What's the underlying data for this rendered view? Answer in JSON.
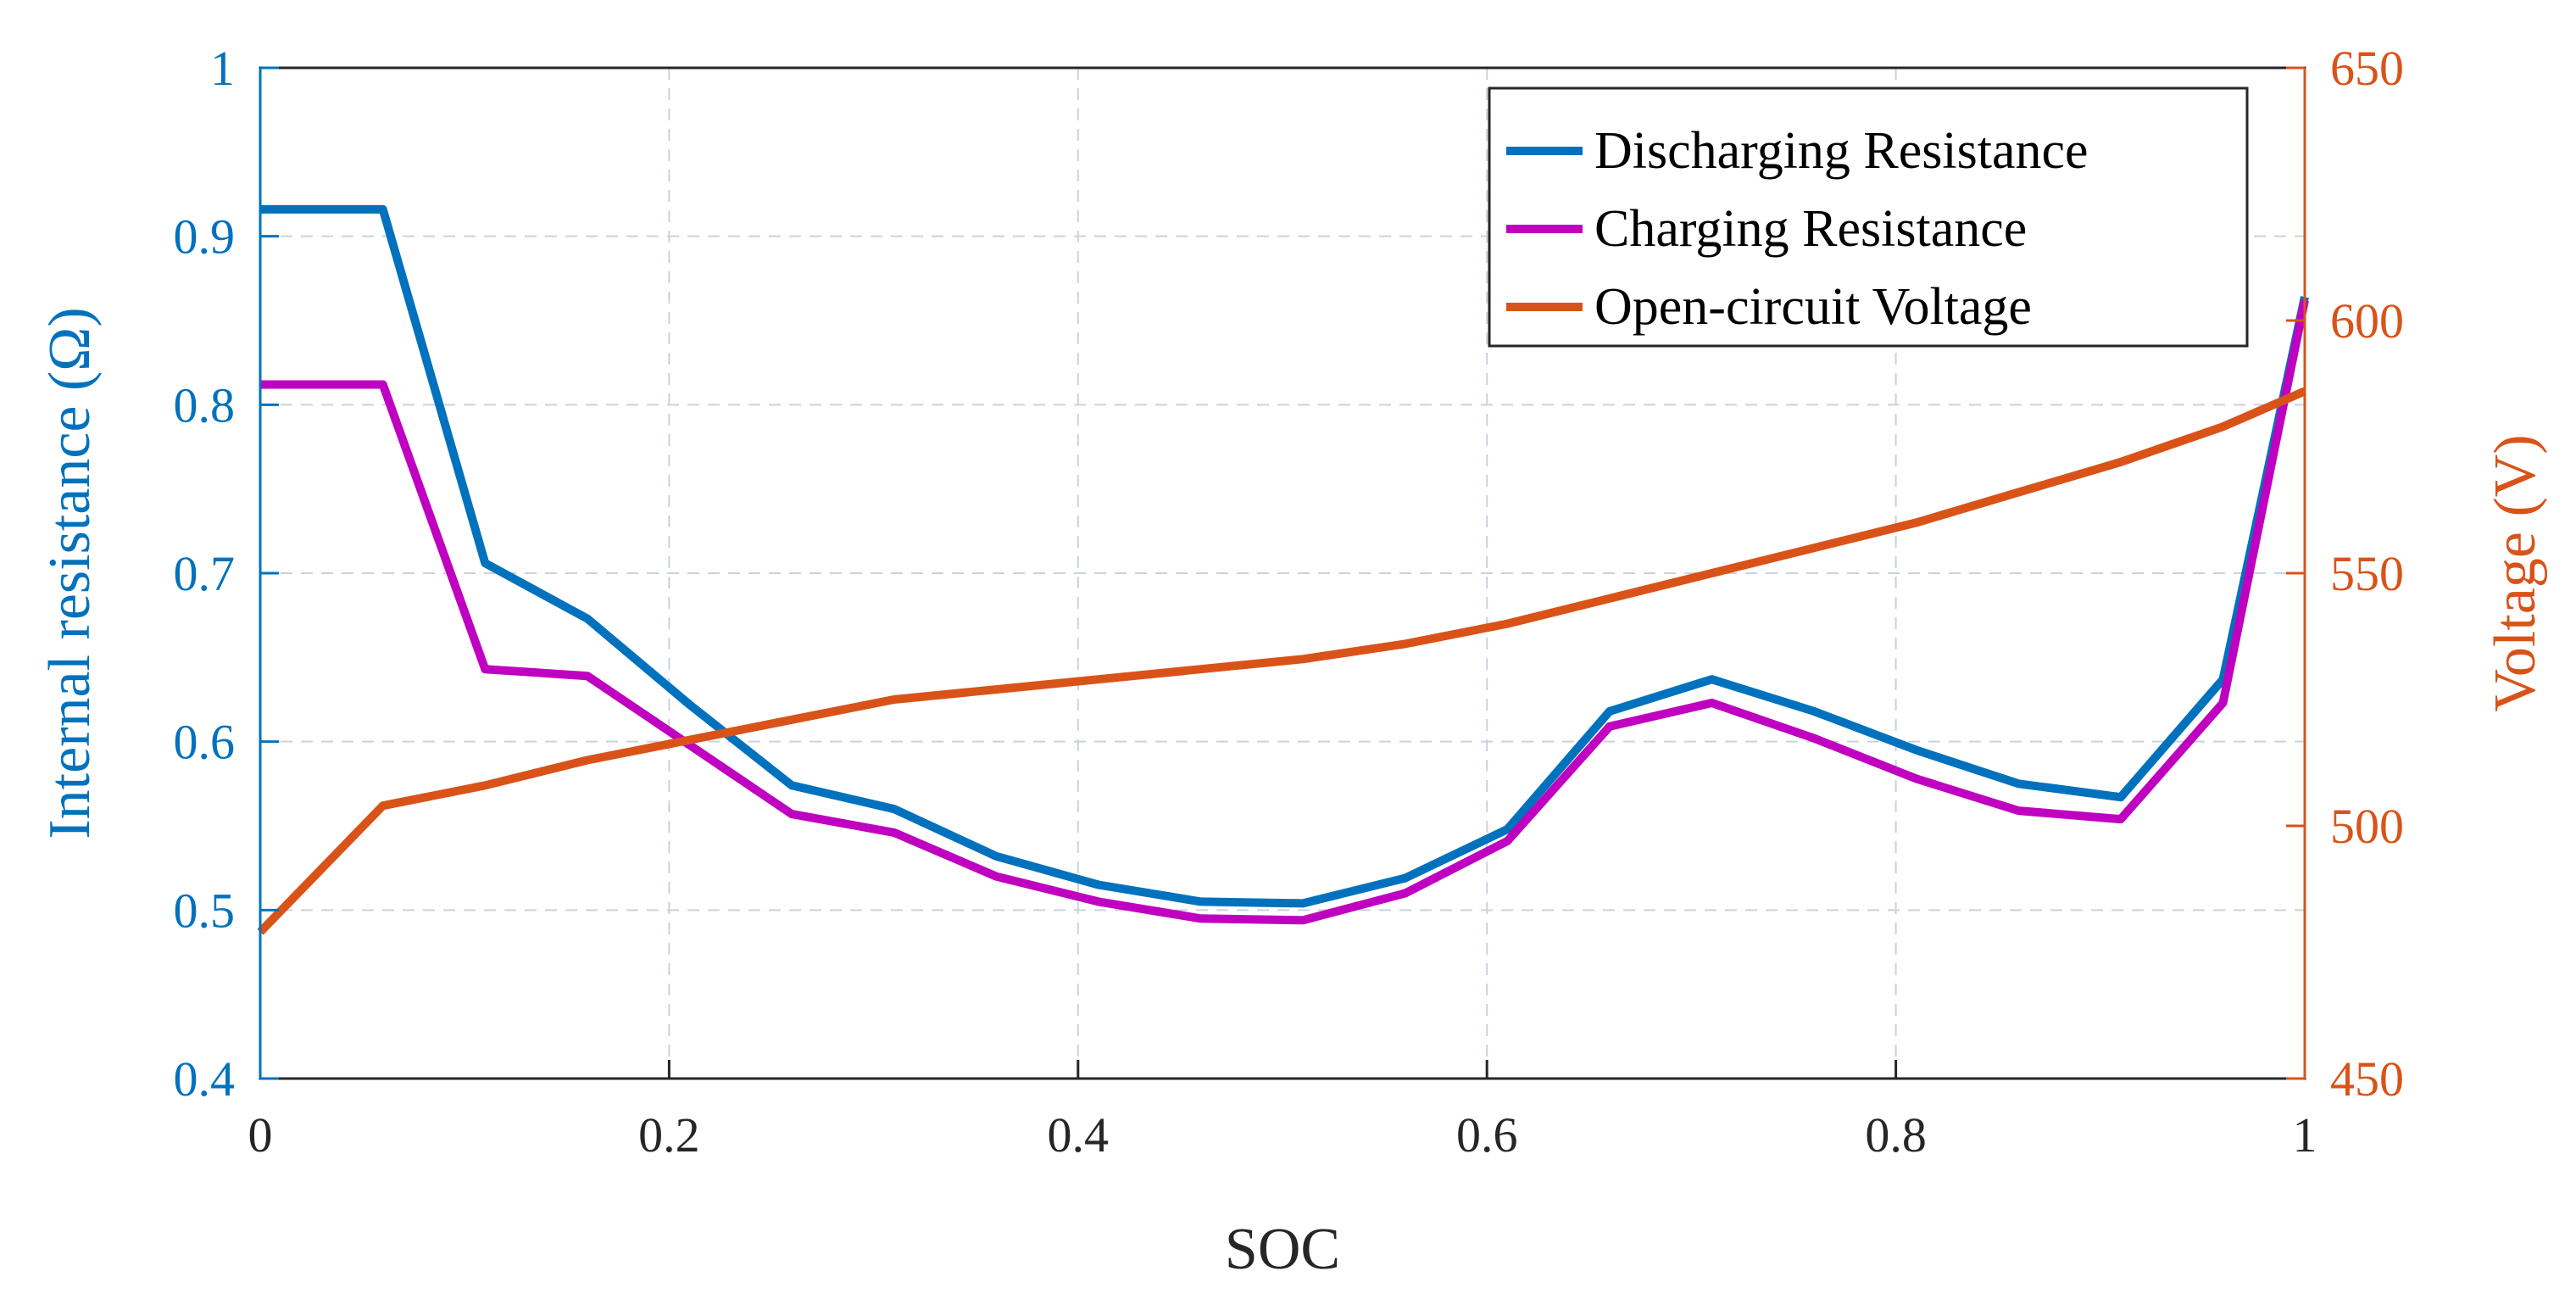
{
  "chart_data": {
    "type": "line",
    "xlabel": "SOC",
    "ylabel_left": "Internal resistance (Ω)",
    "ylabel_right": "Voltage (V)",
    "xlim": [
      0,
      1
    ],
    "ylim_left": [
      0.4,
      1
    ],
    "ylim_right": [
      450,
      650
    ],
    "x_ticks": [
      "0",
      "0.2",
      "0.4",
      "0.6",
      "0.8",
      "1"
    ],
    "y_left_ticks": [
      "0.4",
      "0.5",
      "0.6",
      "0.7",
      "0.8",
      "0.9",
      "1"
    ],
    "y_right_ticks": [
      "450",
      "500",
      "550",
      "600",
      "650"
    ],
    "grid": true,
    "legend_position": "top-right",
    "x": [
      0,
      0.06,
      0.11,
      0.16,
      0.21,
      0.26,
      0.31,
      0.36,
      0.41,
      0.46,
      0.51,
      0.56,
      0.61,
      0.66,
      0.71,
      0.76,
      0.81,
      0.86,
      0.91,
      0.96,
      1.0
    ],
    "series": [
      {
        "name": "Discharging Resistance",
        "axis": "left",
        "color": "#0072bd",
        "values": [
          0.916,
          0.916,
          0.706,
          0.673,
          0.622,
          0.574,
          0.56,
          0.532,
          0.515,
          0.505,
          0.504,
          0.519,
          0.548,
          0.618,
          0.637,
          0.618,
          0.595,
          0.575,
          0.567,
          0.637,
          0.864
        ]
      },
      {
        "name": "Charging Resistance",
        "axis": "left",
        "color": "#c000c0",
        "values": [
          0.812,
          0.812,
          0.643,
          0.639,
          0.598,
          0.557,
          0.546,
          0.52,
          0.505,
          0.495,
          0.494,
          0.51,
          0.541,
          0.609,
          0.623,
          0.602,
          0.578,
          0.559,
          0.554,
          0.623,
          0.862
        ]
      },
      {
        "name": "Open-circuit Voltage",
        "axis": "right",
        "color": "#d95319",
        "values": [
          479,
          504,
          508,
          513,
          517,
          521,
          525,
          527,
          529,
          531,
          533,
          536,
          540,
          545,
          550,
          555,
          560,
          566,
          572,
          579,
          586
        ]
      }
    ]
  }
}
